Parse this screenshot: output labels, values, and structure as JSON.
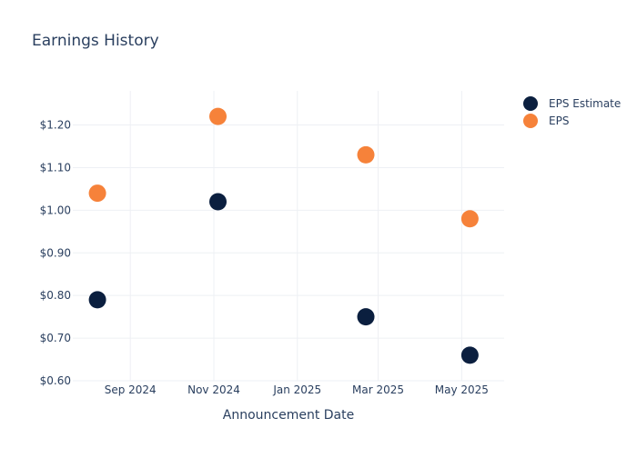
{
  "chart_data": {
    "type": "scatter",
    "title": "Earnings History",
    "xlabel": "Announcement Date",
    "ylabel": "",
    "x_ticks": [
      "2024-09-01",
      "2024-11-01",
      "2025-01-01",
      "2025-03-01",
      "2025-05-01"
    ],
    "x_tick_labels": [
      "Sep 2024",
      "Nov 2024",
      "Jan 2025",
      "Mar 2025",
      "May 2025"
    ],
    "xlim": [
      "2024-07-21",
      "2025-06-01"
    ],
    "y_ticks": [
      0.6,
      0.7,
      0.8,
      0.9,
      1.0,
      1.1,
      1.2
    ],
    "y_tick_labels": [
      "$0.60",
      "$0.70",
      "$0.80",
      "$0.90",
      "$1.00",
      "$1.10",
      "$1.20"
    ],
    "ylim": [
      0.6,
      1.28
    ],
    "grid": true,
    "legend_position": "top-right",
    "series": [
      {
        "name": "EPS Estimate",
        "color": "#0b1f3f",
        "points": [
          {
            "x": "2024-08-08",
            "y": 0.79
          },
          {
            "x": "2024-11-04",
            "y": 1.02
          },
          {
            "x": "2025-02-20",
            "y": 0.75
          },
          {
            "x": "2025-05-07",
            "y": 0.66
          }
        ]
      },
      {
        "name": "EPS",
        "color": "#f6823a",
        "points": [
          {
            "x": "2024-08-08",
            "y": 1.04
          },
          {
            "x": "2024-11-04",
            "y": 1.22
          },
          {
            "x": "2025-02-20",
            "y": 1.13
          },
          {
            "x": "2025-05-07",
            "y": 0.98
          }
        ]
      }
    ]
  }
}
